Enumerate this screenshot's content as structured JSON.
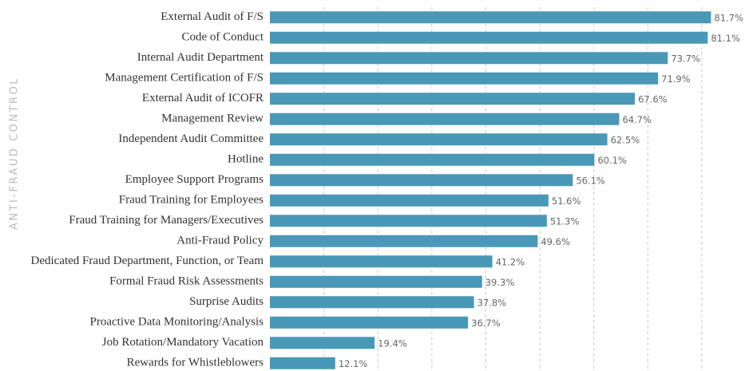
{
  "chart_data": {
    "type": "bar",
    "orientation": "horizontal",
    "y_axis_label": "ANTI-FRAUD CONTROL",
    "categories": [
      "External Audit of F/S",
      "Code of Conduct",
      "Internal Audit Department",
      "Management Certification of F/S",
      "External Audit of ICOFR",
      "Management Review",
      "Independent Audit Committee",
      "Hotline",
      "Employee Support Programs",
      "Fraud Training for Employees",
      "Fraud Training for Managers/Executives",
      "Anti-Fraud Policy",
      "Dedicated Fraud Department, Function, or Team",
      "Formal Fraud Risk Assessments",
      "Surprise Audits",
      "Proactive Data Monitoring/Analysis",
      "Job Rotation/Mandatory Vacation",
      "Rewards for Whistleblowers"
    ],
    "values": [
      81.7,
      81.1,
      73.7,
      71.9,
      67.6,
      64.7,
      62.5,
      60.1,
      56.1,
      51.6,
      51.3,
      49.6,
      41.2,
      39.3,
      37.8,
      36.7,
      19.4,
      12.1
    ],
    "value_labels": [
      "81.7%",
      "81.1%",
      "73.7%",
      "71.9%",
      "67.6%",
      "64.7%",
      "62.5%",
      "60.1%",
      "56.1%",
      "51.6%",
      "51.3%",
      "49.6%",
      "41.2%",
      "39.3%",
      "37.8%",
      "36.7%",
      "19.4%",
      "12.1%"
    ],
    "color": "#4a98b8",
    "xlim": [
      0,
      88
    ],
    "xticks": [
      10,
      20,
      30,
      40,
      50,
      60,
      70,
      80
    ],
    "grid": true
  }
}
